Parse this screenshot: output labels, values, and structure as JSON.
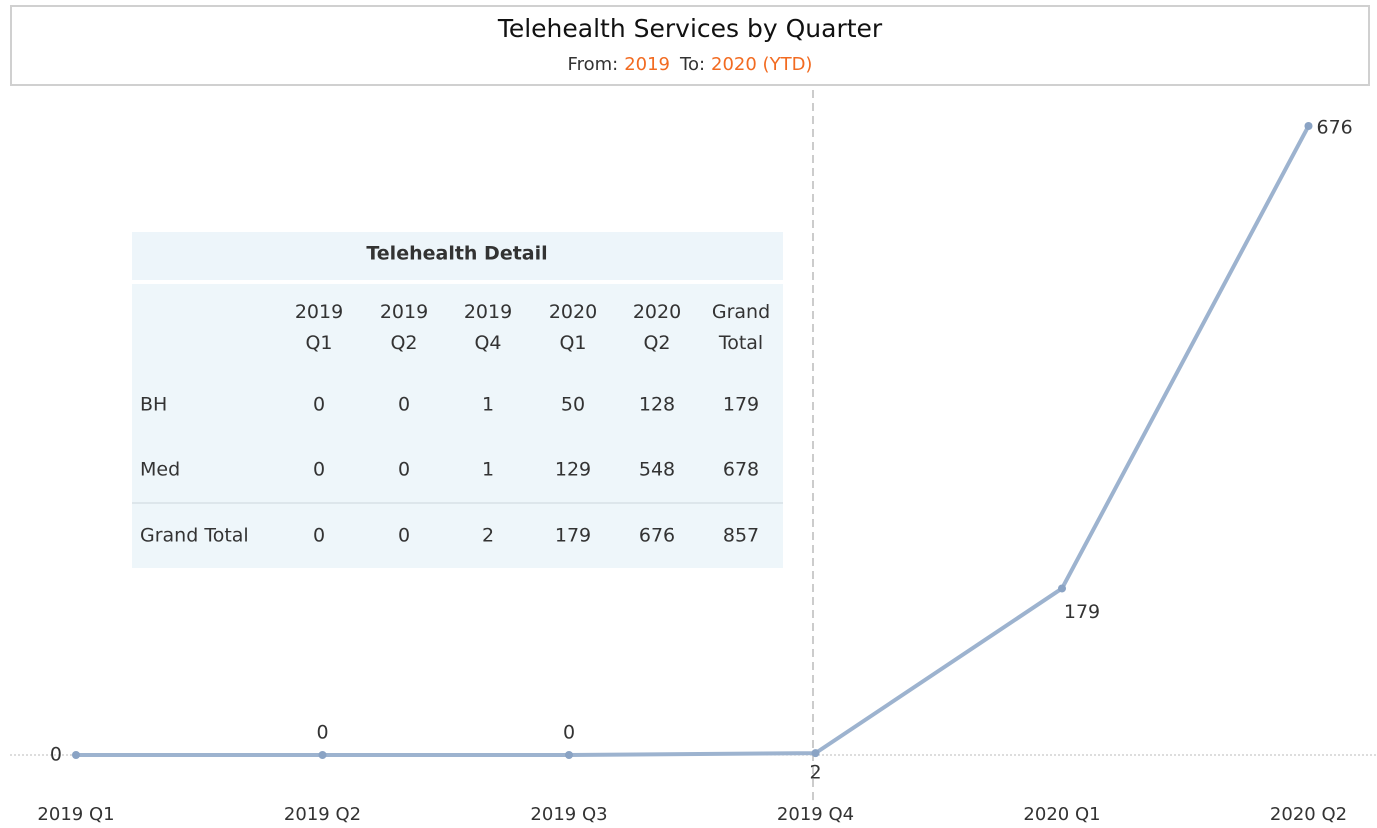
{
  "chart_data": {
    "type": "line",
    "title": "Telehealth Services by Quarter",
    "subtitle": {
      "from_label": "From:",
      "from": "2019",
      "to_label": "To:",
      "to": "2020 (YTD)"
    },
    "categories": [
      "2019 Q1",
      "2019 Q2",
      "2019 Q3",
      "2019 Q4",
      "2020 Q1",
      "2020 Q2"
    ],
    "values": [
      0,
      0,
      0,
      2,
      179,
      676
    ],
    "color": "#9db3cf",
    "highlight_color": "#f26b21"
  },
  "table": {
    "title": "Telehealth Detail",
    "columns": [
      "2019 Q1",
      "2019 Q2",
      "2019 Q4",
      "2020 Q1",
      "2020 Q2",
      "Grand Total"
    ],
    "rows": [
      {
        "label": "BH",
        "values": [
          "0",
          "0",
          "1",
          "50",
          "128",
          "179"
        ]
      },
      {
        "label": "Med",
        "values": [
          "0",
          "0",
          "1",
          "129",
          "548",
          "678"
        ]
      },
      {
        "label": "Grand Total",
        "values": [
          "0",
          "0",
          "2",
          "179",
          "676",
          "857"
        ]
      }
    ]
  }
}
